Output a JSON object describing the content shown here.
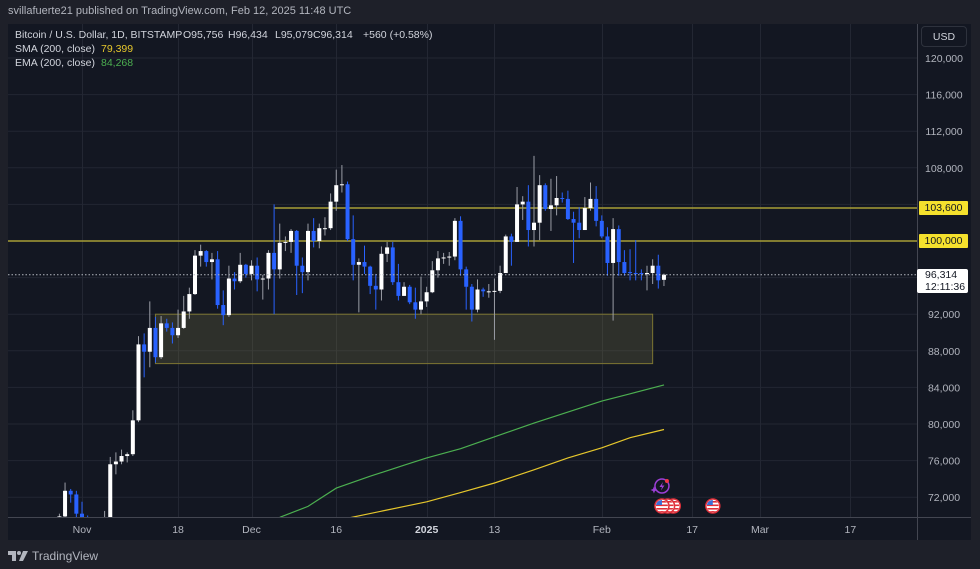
{
  "header": {
    "publisher_line": "svillafuerte21 published on TradingView.com, Feb 12, 2025 11:48 UTC"
  },
  "legend": {
    "symbol": "Bitcoin / U.S. Dollar, 1D, BITSTAMP",
    "open": "O95,756",
    "high": "H96,434",
    "low": "L95,079",
    "close": "C96,314",
    "change": "+560 (+0.58%)",
    "sma": {
      "label": "SMA (200, close)",
      "value": "79,399"
    },
    "ema": {
      "label": "EMA (200, close)",
      "value": "84,268"
    }
  },
  "price_axis": {
    "currency_button": "USD",
    "level_labels": [
      "103,600",
      "100,000"
    ],
    "last_price": "96,314",
    "countdown": "12:11:36"
  },
  "footer": {
    "brand": "TradingView"
  },
  "chart_data": {
    "type": "candlestick",
    "title": "Bitcoin / U.S. Dollar, 1D, BITSTAMP",
    "xlabel": "",
    "ylabel": "USD",
    "ylim": [
      69800,
      122000
    ],
    "grid": true,
    "legend_position": "top-left",
    "colors": {
      "up": "#ffffff",
      "up_wick": "#9a9da6",
      "down": "#2962ff",
      "down_wick": "#2962ff",
      "sma": "#e6c72c",
      "ema": "#4caf50",
      "level": "#a89d36",
      "zone_fill": "rgba(120,115,70,0.28)",
      "zone_border": "#7d7532",
      "grid": "#232733",
      "axis_text": "#b2b5be",
      "price_line": "#b2b5be"
    },
    "y_ticks": [
      {
        "value": 120000,
        "label": "120,000"
      },
      {
        "value": 116000,
        "label": "116,000"
      },
      {
        "value": 112000,
        "label": "112,000"
      },
      {
        "value": 108000,
        "label": "108,000"
      },
      {
        "value": 104000,
        "label": "104,000"
      },
      {
        "value": 100000,
        "label": "100,000"
      },
      {
        "value": 96000,
        "label": "96,000"
      },
      {
        "value": 92000,
        "label": "92,000"
      },
      {
        "value": 88000,
        "label": "88,000"
      },
      {
        "value": 84000,
        "label": "84,000"
      },
      {
        "value": 80000,
        "label": "80,000"
      },
      {
        "value": 76000,
        "label": "76,000"
      },
      {
        "value": 72000,
        "label": "72,000"
      }
    ],
    "x_ticks": [
      {
        "label": "Nov",
        "date": "2024-11-01",
        "bold": false
      },
      {
        "label": "18",
        "date": "2024-11-18",
        "bold": false
      },
      {
        "label": "Dec",
        "date": "2024-12-01",
        "bold": false
      },
      {
        "label": "16",
        "date": "2024-12-16",
        "bold": false
      },
      {
        "label": "2025",
        "date": "2025-01-01",
        "bold": true
      },
      {
        "label": "13",
        "date": "2025-01-13",
        "bold": false
      },
      {
        "label": "Feb",
        "date": "2025-02-01",
        "bold": false
      },
      {
        "label": "17",
        "date": "2025-02-17",
        "bold": false
      },
      {
        "label": "Mar",
        "date": "2025-03-01",
        "bold": false
      },
      {
        "label": "17",
        "date": "2025-03-17",
        "bold": false
      }
    ],
    "candle_columns": [
      "date",
      "open",
      "high",
      "low",
      "close"
    ],
    "candles": [
      [
        "2024-10-28",
        67900,
        70200,
        67500,
        69900
      ],
      [
        "2024-10-29",
        69900,
        73600,
        69700,
        72700
      ],
      [
        "2024-10-30",
        72700,
        72900,
        71400,
        72300
      ],
      [
        "2024-10-31",
        72300,
        72700,
        69700,
        70200
      ],
      [
        "2024-11-01",
        70200,
        71500,
        68800,
        69500
      ],
      [
        "2024-11-02",
        69500,
        70000,
        68900,
        69300
      ],
      [
        "2024-11-03",
        69300,
        69400,
        67500,
        68700
      ],
      [
        "2024-11-04",
        68700,
        69000,
        66800,
        67800
      ],
      [
        "2024-11-05",
        67800,
        70500,
        67400,
        69300
      ],
      [
        "2024-11-06",
        69300,
        76400,
        69300,
        75600
      ],
      [
        "2024-11-07",
        75600,
        76900,
        74500,
        75900
      ],
      [
        "2024-11-08",
        75900,
        77200,
        75600,
        76500
      ],
      [
        "2024-11-09",
        76500,
        76900,
        75800,
        76700
      ],
      [
        "2024-11-10",
        76700,
        81500,
        76500,
        80400
      ],
      [
        "2024-11-11",
        80400,
        89600,
        80200,
        88700
      ],
      [
        "2024-11-12",
        88700,
        89900,
        85100,
        87900
      ],
      [
        "2024-11-13",
        87900,
        93400,
        86200,
        90500
      ],
      [
        "2024-11-14",
        90500,
        91700,
        86700,
        87300
      ],
      [
        "2024-11-15",
        87300,
        91800,
        87100,
        91000
      ],
      [
        "2024-11-16",
        91000,
        91500,
        90100,
        90500
      ],
      [
        "2024-11-17",
        90500,
        91100,
        88800,
        89700
      ],
      [
        "2024-11-18",
        89700,
        92500,
        89400,
        90500
      ],
      [
        "2024-11-19",
        90500,
        94000,
        90400,
        92300
      ],
      [
        "2024-11-20",
        92300,
        94900,
        91500,
        94200
      ],
      [
        "2024-11-21",
        94200,
        99000,
        94100,
        98400
      ],
      [
        "2024-11-22",
        98400,
        99600,
        97200,
        98900
      ],
      [
        "2024-11-23",
        98900,
        99000,
        97200,
        97700
      ],
      [
        "2024-11-24",
        97700,
        98700,
        95800,
        98000
      ],
      [
        "2024-11-25",
        98000,
        98900,
        92600,
        93000
      ],
      [
        "2024-11-26",
        93000,
        94600,
        90800,
        91900
      ],
      [
        "2024-11-27",
        91900,
        97300,
        91700,
        95900
      ],
      [
        "2024-11-28",
        95900,
        96600,
        94700,
        95600
      ],
      [
        "2024-11-29",
        95600,
        98700,
        95400,
        97400
      ],
      [
        "2024-11-30",
        97400,
        97500,
        96000,
        96400
      ],
      [
        "2024-12-01",
        96400,
        97900,
        95700,
        97300
      ],
      [
        "2024-12-02",
        97300,
        98200,
        94500,
        95800
      ],
      [
        "2024-12-03",
        95800,
        96300,
        93600,
        95900
      ],
      [
        "2024-12-04",
        95900,
        99000,
        94700,
        98700
      ],
      [
        "2024-12-05",
        98700,
        104000,
        92000,
        96900
      ],
      [
        "2024-12-06",
        96900,
        101900,
        95900,
        99800
      ],
      [
        "2024-12-07",
        99800,
        100500,
        98900,
        99900
      ],
      [
        "2024-12-08",
        99900,
        101300,
        98700,
        101100
      ],
      [
        "2024-12-09",
        101100,
        101200,
        94100,
        97300
      ],
      [
        "2024-12-10",
        97300,
        98200,
        94300,
        96600
      ],
      [
        "2024-12-11",
        96600,
        101900,
        95700,
        101100
      ],
      [
        "2024-12-12",
        101100,
        102500,
        99300,
        100000
      ],
      [
        "2024-12-13",
        100000,
        101900,
        99200,
        101400
      ],
      [
        "2024-12-14",
        101400,
        102600,
        100600,
        101400
      ],
      [
        "2024-12-15",
        101400,
        105200,
        101200,
        104300
      ],
      [
        "2024-12-16",
        104300,
        107800,
        103300,
        106100
      ],
      [
        "2024-12-17",
        106100,
        108300,
        105300,
        106200
      ],
      [
        "2024-12-18",
        106200,
        106500,
        100000,
        100200
      ],
      [
        "2024-12-19",
        100200,
        102800,
        95700,
        97400
      ],
      [
        "2024-12-20",
        97400,
        98100,
        92200,
        97700
      ],
      [
        "2024-12-21",
        97700,
        99500,
        96400,
        97200
      ],
      [
        "2024-12-22",
        97200,
        97300,
        94200,
        95100
      ],
      [
        "2024-12-23",
        95100,
        96400,
        92500,
        94700
      ],
      [
        "2024-12-24",
        94700,
        99400,
        93500,
        98600
      ],
      [
        "2024-12-25",
        98600,
        99900,
        97700,
        99300
      ],
      [
        "2024-12-26",
        99300,
        99900,
        95200,
        95500
      ],
      [
        "2024-12-27",
        95500,
        97500,
        93500,
        94000
      ],
      [
        "2024-12-28",
        94000,
        95500,
        94000,
        95000
      ],
      [
        "2024-12-29",
        95000,
        95200,
        93100,
        93300
      ],
      [
        "2024-12-30",
        93300,
        94900,
        91500,
        92500
      ],
      [
        "2024-12-31",
        92500,
        96100,
        92000,
        93400
      ],
      [
        "2025-01-01",
        93400,
        95000,
        92800,
        94400
      ],
      [
        "2025-01-02",
        94400,
        97800,
        94300,
        96800
      ],
      [
        "2025-01-03",
        96800,
        98900,
        96000,
        98100
      ],
      [
        "2025-01-04",
        98100,
        98700,
        97500,
        98200
      ],
      [
        "2025-01-05",
        98200,
        98800,
        97300,
        98300
      ],
      [
        "2025-01-06",
        98300,
        102500,
        97900,
        102200
      ],
      [
        "2025-01-07",
        102200,
        102700,
        96200,
        96900
      ],
      [
        "2025-01-08",
        96900,
        97200,
        92500,
        95000
      ],
      [
        "2025-01-09",
        95000,
        95300,
        91200,
        92500
      ],
      [
        "2025-01-10",
        92500,
        95800,
        92200,
        94700
      ],
      [
        "2025-01-11",
        94700,
        94900,
        93900,
        94500
      ],
      [
        "2025-01-12",
        94500,
        95300,
        93800,
        94500
      ],
      [
        "2025-01-13",
        94500,
        95900,
        89200,
        94550
      ],
      [
        "2025-01-14",
        94550,
        97300,
        94300,
        96500
      ],
      [
        "2025-01-15",
        96500,
        100700,
        96500,
        100500
      ],
      [
        "2025-01-16",
        100500,
        100800,
        97300,
        99900
      ],
      [
        "2025-01-17",
        99900,
        105900,
        99900,
        104000
      ],
      [
        "2025-01-18",
        104000,
        104900,
        102300,
        104300
      ],
      [
        "2025-01-19",
        104300,
        106100,
        99400,
        101200
      ],
      [
        "2025-01-20",
        101200,
        109300,
        99400,
        102000
      ],
      [
        "2025-01-21",
        102000,
        107200,
        100100,
        106100
      ],
      [
        "2025-01-22",
        106100,
        106300,
        103300,
        103500
      ],
      [
        "2025-01-23",
        103500,
        106800,
        101100,
        103900
      ],
      [
        "2025-01-24",
        103900,
        107100,
        102800,
        104700
      ],
      [
        "2025-01-25",
        104700,
        105300,
        104200,
        104600
      ],
      [
        "2025-01-26",
        104600,
        105500,
        102300,
        102400
      ],
      [
        "2025-01-27",
        102400,
        103200,
        97600,
        102000
      ],
      [
        "2025-01-28",
        102000,
        103700,
        100300,
        101200
      ],
      [
        "2025-01-29",
        101200,
        104800,
        101200,
        103600
      ],
      [
        "2025-01-30",
        103600,
        106400,
        103300,
        104600
      ],
      [
        "2025-01-31",
        104600,
        106000,
        101600,
        102200
      ],
      [
        "2025-02-01",
        102200,
        102800,
        100300,
        100500
      ],
      [
        "2025-02-02",
        100500,
        101500,
        96200,
        97600
      ],
      [
        "2025-02-03",
        97600,
        102500,
        91300,
        101300
      ],
      [
        "2025-02-04",
        101300,
        101700,
        96200,
        97700
      ],
      [
        "2025-02-05",
        97700,
        99000,
        96200,
        96500
      ],
      [
        "2025-02-06",
        96600,
        99100,
        95700,
        96500
      ],
      [
        "2025-02-07",
        96500,
        100100,
        95700,
        96400
      ],
      [
        "2025-02-08",
        96500,
        96900,
        95700,
        96400
      ],
      [
        "2025-02-09",
        96400,
        97300,
        94600,
        96500
      ],
      [
        "2025-02-10",
        96500,
        98000,
        95300,
        97300
      ],
      [
        "2025-02-11",
        97300,
        98500,
        94800,
        95700
      ],
      [
        "2025-02-12",
        95756,
        96434,
        95079,
        96314
      ]
    ],
    "series": [
      {
        "name": "SMA (200, close)",
        "color_key": "sma",
        "last": 79399,
        "points": [
          [
            "2024-12-18",
            69700
          ],
          [
            "2024-12-25",
            70600
          ],
          [
            "2025-01-01",
            71500
          ],
          [
            "2025-01-07",
            72500
          ],
          [
            "2025-01-13",
            73550
          ],
          [
            "2025-01-20",
            75000
          ],
          [
            "2025-01-26",
            76300
          ],
          [
            "2025-02-01",
            77400
          ],
          [
            "2025-02-06",
            78500
          ],
          [
            "2025-02-12",
            79399
          ]
        ]
      },
      {
        "name": "EMA (200, close)",
        "color_key": "ema",
        "last": 84268,
        "points": [
          [
            "2024-12-06",
            69800
          ],
          [
            "2024-12-11",
            71000
          ],
          [
            "2024-12-16",
            73000
          ],
          [
            "2024-12-22",
            74300
          ],
          [
            "2024-12-28",
            75500
          ],
          [
            "2025-01-01",
            76300
          ],
          [
            "2025-01-07",
            77300
          ],
          [
            "2025-01-13",
            78600
          ],
          [
            "2025-01-20",
            80100
          ],
          [
            "2025-01-26",
            81300
          ],
          [
            "2025-02-01",
            82500
          ],
          [
            "2025-02-06",
            83300
          ],
          [
            "2025-02-12",
            84268
          ]
        ]
      }
    ],
    "horizontal_levels": [
      {
        "price": 103600,
        "label": "103,600",
        "from": "2024-12-05"
      },
      {
        "price": 100000,
        "label": "100,000",
        "from": null
      }
    ],
    "zones": [
      {
        "name": "demand-zone",
        "from": "2024-11-14",
        "to": "2025-02-10",
        "top": 92000,
        "bottom": 86600
      }
    ],
    "last_price_line": {
      "price": 96314,
      "label": "96,314",
      "countdown": "12:11:36"
    },
    "events": [
      {
        "icon": "lightning-event-icon",
        "date": "2025-02-12",
        "row": 1
      },
      {
        "icon": "us-flag-event-icon",
        "date": "2025-02-14",
        "row": 2
      },
      {
        "icon": "us-flag-event-icon",
        "date": "2025-02-13",
        "row": 2
      },
      {
        "icon": "us-flag-event-icon",
        "date": "2025-02-12",
        "row": 2
      },
      {
        "icon": "us-flag-event-icon",
        "date": "2025-02-21",
        "row": 2
      }
    ]
  }
}
